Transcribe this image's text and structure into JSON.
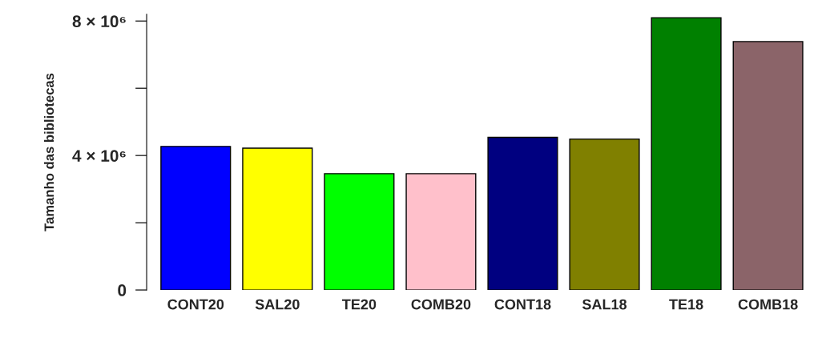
{
  "chart_data": {
    "type": "bar",
    "ylabel": "Tamanho das bibliotecas",
    "categories": [
      "CONT20",
      "SAL20",
      "TE20",
      "COMB20",
      "CONT18",
      "SAL18",
      "TE18",
      "COMB18"
    ],
    "values": [
      4270000,
      4220000,
      3460000,
      3460000,
      4540000,
      4490000,
      8100000,
      7390000
    ],
    "colors": [
      "#0000ff",
      "#ffff00",
      "#00ff00",
      "#ffc0cb",
      "#000080",
      "#808000",
      "#008000",
      "#8b6469"
    ],
    "ylim": [
      0,
      8200000
    ],
    "yticks": [
      0,
      {
        "value": 2000000,
        "label": null
      },
      {
        "value": 4000000,
        "label": "4 × 10⁶"
      },
      {
        "value": 6000000,
        "label": null
      },
      {
        "value": 8000000,
        "label": "8 × 10⁶"
      }
    ],
    "grid": false,
    "legend": false
  }
}
